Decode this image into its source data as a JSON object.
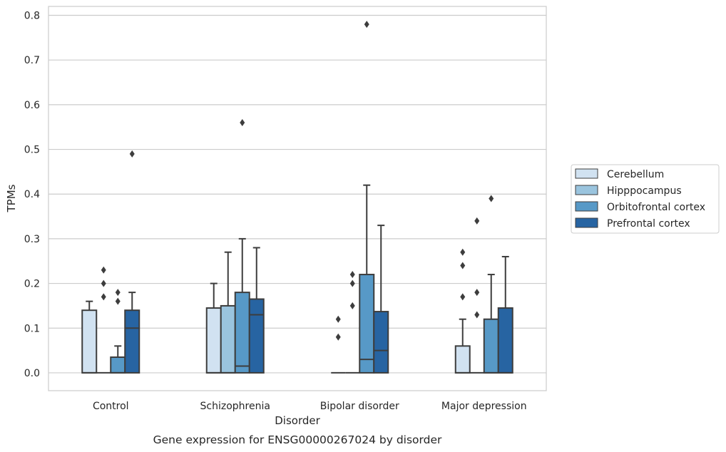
{
  "caption": "Gene expression for ENSG00000267024 by disorder",
  "chart_data": {
    "type": "box",
    "title": "",
    "xlabel": "Disorder",
    "ylabel": "TPMs",
    "ylim": [
      -0.04,
      0.82
    ],
    "yticks": [
      0.0,
      0.1,
      0.2,
      0.3,
      0.4,
      0.5,
      0.6,
      0.7,
      0.8
    ],
    "ytick_labels": [
      "0.0",
      "0.1",
      "0.2",
      "0.3",
      "0.4",
      "0.5",
      "0.6",
      "0.7",
      "0.8"
    ],
    "grid": "horizontal",
    "legend_position": "right",
    "categories": [
      "Control",
      "Schizophrenia",
      "Bipolar disorder",
      "Major depression"
    ],
    "series": [
      {
        "name": "Cerebellum",
        "color": "#d1e2f1",
        "boxes": [
          {
            "q1": 0.0,
            "median": 0.0,
            "q3": 0.14,
            "whisker_low": 0.0,
            "whisker_high": 0.16,
            "outliers": []
          },
          {
            "q1": 0.0,
            "median": 0.0,
            "q3": 0.145,
            "whisker_low": 0.0,
            "whisker_high": 0.2,
            "outliers": []
          },
          {
            "q1": 0.0,
            "median": 0.0,
            "q3": 0.0,
            "whisker_low": 0.0,
            "whisker_high": 0.0,
            "outliers": [
              0.08,
              0.12
            ]
          },
          {
            "q1": 0.0,
            "median": 0.0,
            "q3": 0.06,
            "whisker_low": 0.0,
            "whisker_high": 0.12,
            "outliers": [
              0.17,
              0.24,
              0.27
            ]
          }
        ]
      },
      {
        "name": "Hipppocampus",
        "color": "#9ac4de",
        "boxes": [
          {
            "q1": 0.0,
            "median": 0.0,
            "q3": 0.0,
            "whisker_low": 0.0,
            "whisker_high": 0.0,
            "outliers": [
              0.17,
              0.2,
              0.23
            ]
          },
          {
            "q1": 0.0,
            "median": 0.0,
            "q3": 0.15,
            "whisker_low": 0.0,
            "whisker_high": 0.27,
            "outliers": []
          },
          {
            "q1": 0.0,
            "median": 0.0,
            "q3": 0.0,
            "whisker_low": 0.0,
            "whisker_high": 0.0,
            "outliers": [
              0.15,
              0.2,
              0.22
            ]
          },
          {
            "q1": 0.0,
            "median": 0.0,
            "q3": 0.0,
            "whisker_low": 0.0,
            "whisker_high": 0.0,
            "outliers": [
              0.13,
              0.18,
              0.34
            ]
          }
        ]
      },
      {
        "name": "Orbitofrontal cortex",
        "color": "#5799c7",
        "boxes": [
          {
            "q1": 0.0,
            "median": 0.0,
            "q3": 0.035,
            "whisker_low": 0.0,
            "whisker_high": 0.06,
            "outliers": [
              0.16,
              0.18
            ]
          },
          {
            "q1": 0.0,
            "median": 0.015,
            "q3": 0.18,
            "whisker_low": 0.0,
            "whisker_high": 0.3,
            "outliers": [
              0.56
            ]
          },
          {
            "q1": 0.0,
            "median": 0.03,
            "q3": 0.22,
            "whisker_low": 0.0,
            "whisker_high": 0.42,
            "outliers": [
              0.78
            ]
          },
          {
            "q1": 0.0,
            "median": 0.0,
            "q3": 0.12,
            "whisker_low": 0.0,
            "whisker_high": 0.22,
            "outliers": [
              0.39
            ]
          }
        ]
      },
      {
        "name": "Prefrontal cortex",
        "color": "#2764a2",
        "boxes": [
          {
            "q1": 0.0,
            "median": 0.1,
            "q3": 0.14,
            "whisker_low": 0.0,
            "whisker_high": 0.18,
            "outliers": [
              0.49
            ]
          },
          {
            "q1": 0.0,
            "median": 0.13,
            "q3": 0.165,
            "whisker_low": 0.0,
            "whisker_high": 0.28,
            "outliers": []
          },
          {
            "q1": 0.0,
            "median": 0.05,
            "q3": 0.137,
            "whisker_low": 0.0,
            "whisker_high": 0.33,
            "outliers": []
          },
          {
            "q1": 0.0,
            "median": 0.0,
            "q3": 0.145,
            "whisker_low": 0.0,
            "whisker_high": 0.26,
            "outliers": []
          }
        ]
      }
    ]
  }
}
